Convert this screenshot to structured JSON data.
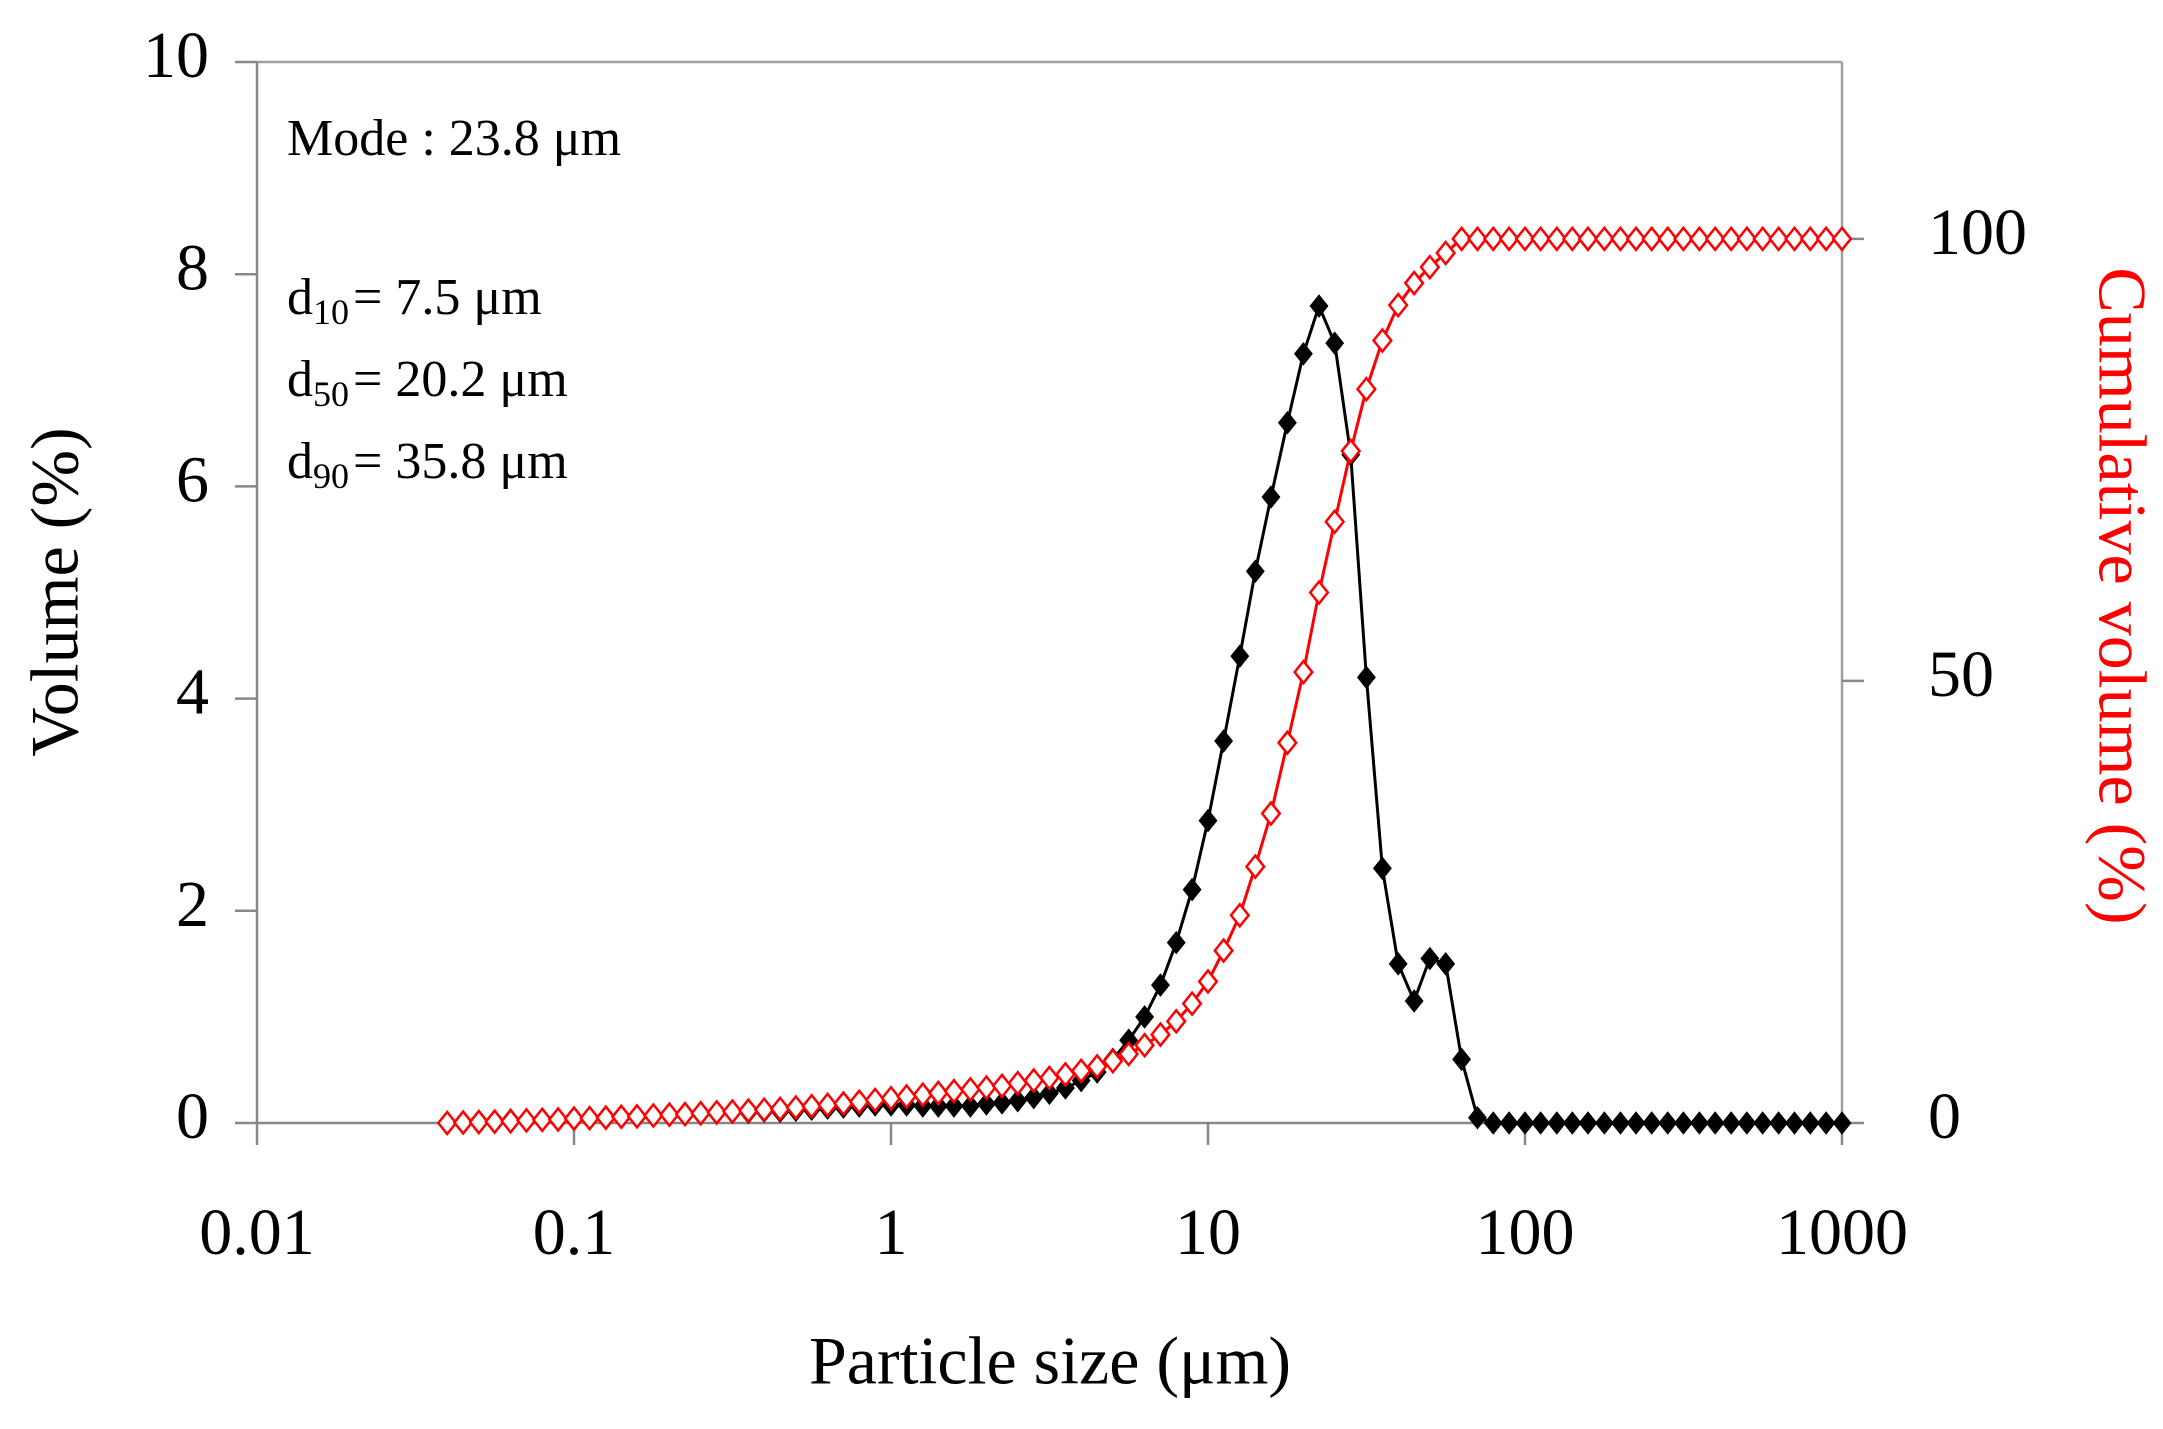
{
  "chart_data": {
    "type": "line",
    "xlabel": "Particle size (μm)",
    "ylabel": "Volume (%)",
    "y2label": "Cumulative volume  (%)",
    "xscale": "log",
    "xlim": [
      0.01,
      1000
    ],
    "xticks": [
      0.01,
      0.1,
      1,
      10,
      100,
      1000
    ],
    "ylim": [
      0,
      10
    ],
    "yticks": [
      0,
      2,
      4,
      6,
      8,
      10
    ],
    "y2lim": [
      0,
      120
    ],
    "y2ticks": [
      0,
      50,
      100
    ],
    "y2color": "#ff0000",
    "annotations": [
      "Mode : 23.8 μm",
      {
        "text": "d",
        "sub": "10",
        "after": "= 7.5 μm"
      },
      {
        "text": "d",
        "sub": "50",
        "after": "= 20.2 μm"
      },
      {
        "text": "d",
        "sub": "90",
        "after": "= 35.8 μm"
      }
    ],
    "x": [
      0.0398,
      0.0447,
      0.0501,
      0.0562,
      0.0631,
      0.0708,
      0.0794,
      0.0891,
      0.1,
      0.112,
      0.126,
      0.141,
      0.158,
      0.178,
      0.2,
      0.224,
      0.251,
      0.282,
      0.316,
      0.355,
      0.398,
      0.447,
      0.501,
      0.562,
      0.631,
      0.708,
      0.794,
      0.891,
      1,
      1.12,
      1.26,
      1.41,
      1.58,
      1.78,
      2,
      2.24,
      2.51,
      2.82,
      3.16,
      3.55,
      3.98,
      4.47,
      5.01,
      5.62,
      6.31,
      7.08,
      7.94,
      8.91,
      10,
      11.2,
      12.6,
      14.1,
      15.8,
      17.8,
      20,
      22.4,
      25.1,
      28.2,
      31.6,
      35.5,
      39.8,
      44.7,
      50.1,
      56.2,
      63.1,
      70.8,
      79.4,
      89.1,
      100,
      112,
      126,
      141,
      158,
      178,
      200,
      224,
      251,
      282,
      316,
      355,
      398,
      447,
      501,
      562,
      631,
      708,
      794,
      891,
      1000
    ],
    "series": [
      {
        "color": "#000000",
        "marker": "filled-diamond",
        "axis": "y",
        "values": [
          0,
          0.01,
          0.02,
          0.02,
          0.03,
          0.03,
          0.04,
          0.04,
          0.05,
          0.05,
          0.06,
          0.06,
          0.07,
          0.07,
          0.08,
          0.08,
          0.09,
          0.09,
          0.1,
          0.1,
          0.11,
          0.11,
          0.12,
          0.13,
          0.14,
          0.15,
          0.16,
          0.17,
          0.17,
          0.17,
          0.16,
          0.16,
          0.16,
          0.16,
          0.18,
          0.19,
          0.21,
          0.24,
          0.28,
          0.33,
          0.4,
          0.48,
          0.6,
          0.78,
          1.0,
          1.3,
          1.7,
          2.2,
          2.85,
          3.6,
          4.4,
          5.2,
          5.9,
          6.6,
          7.25,
          7.7,
          7.35,
          6.3,
          4.2,
          2.4,
          1.5,
          1.15,
          1.55,
          1.5,
          0.6,
          0.05,
          0,
          0,
          0,
          0,
          0,
          0,
          0,
          0,
          0,
          0,
          0,
          0,
          0,
          0,
          0,
          0,
          0,
          0,
          0,
          0,
          0,
          0,
          0
        ]
      },
      {
        "color": "#ff0000",
        "marker": "hollow-diamond",
        "axis": "y2",
        "values": [
          0,
          0.05,
          0.1,
          0.15,
          0.2,
          0.3,
          0.35,
          0.4,
          0.5,
          0.55,
          0.6,
          0.7,
          0.75,
          0.85,
          0.95,
          1.0,
          1.1,
          1.2,
          1.3,
          1.4,
          1.5,
          1.6,
          1.75,
          1.9,
          2.05,
          2.2,
          2.4,
          2.6,
          2.8,
          3.0,
          3.2,
          3.4,
          3.6,
          3.8,
          4.0,
          4.2,
          4.5,
          4.8,
          5.1,
          5.5,
          5.9,
          6.4,
          7.0,
          7.8,
          8.8,
          10.0,
          11.5,
          13.5,
          16.0,
          19.5,
          23.5,
          29,
          35,
          43,
          51,
          60,
          68,
          76,
          83,
          88.5,
          92.5,
          95,
          96.8,
          98.4,
          100,
          100,
          100,
          100,
          100,
          100,
          100,
          100,
          100,
          100,
          100,
          100,
          100,
          100,
          100,
          100,
          100,
          100,
          100,
          100,
          100,
          100,
          100,
          100,
          100
        ]
      }
    ]
  }
}
